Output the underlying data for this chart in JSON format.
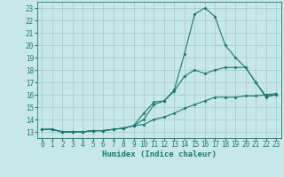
{
  "xlabel": "Humidex (Indice chaleur)",
  "x_values": [
    0,
    1,
    2,
    3,
    4,
    5,
    6,
    7,
    8,
    9,
    10,
    11,
    12,
    13,
    14,
    15,
    16,
    17,
    18,
    19,
    20,
    21,
    22,
    23
  ],
  "line1": [
    13.2,
    13.2,
    13.0,
    13.0,
    13.0,
    13.1,
    13.1,
    13.2,
    13.3,
    13.5,
    14.5,
    15.4,
    15.5,
    16.4,
    19.3,
    22.5,
    23.0,
    22.3,
    20.0,
    19.0,
    18.2,
    17.0,
    15.8,
    16.0
  ],
  "line2": [
    13.2,
    13.2,
    13.0,
    13.0,
    13.0,
    13.1,
    13.1,
    13.2,
    13.3,
    13.5,
    14.0,
    15.2,
    15.5,
    16.3,
    17.5,
    18.0,
    17.7,
    18.0,
    18.2,
    18.2,
    18.2,
    17.0,
    15.9,
    16.0
  ],
  "line3": [
    13.2,
    13.2,
    13.0,
    13.0,
    13.0,
    13.1,
    13.1,
    13.2,
    13.3,
    13.5,
    13.6,
    14.0,
    14.2,
    14.5,
    14.9,
    15.2,
    15.5,
    15.8,
    15.8,
    15.8,
    15.9,
    15.9,
    16.0,
    16.1
  ],
  "line_color": "#1a7a6e",
  "bg_color": "#c8e8e8",
  "grid_color": "#a0c8c8",
  "ylim": [
    12.5,
    23.5
  ],
  "xlim": [
    -0.5,
    23.5
  ],
  "yticks": [
    13,
    14,
    15,
    16,
    17,
    18,
    19,
    20,
    21,
    22,
    23
  ],
  "xticks": [
    0,
    1,
    2,
    3,
    4,
    5,
    6,
    7,
    8,
    9,
    10,
    11,
    12,
    13,
    14,
    15,
    16,
    17,
    18,
    19,
    20,
    21,
    22,
    23
  ],
  "tick_fontsize": 5.5,
  "xlabel_fontsize": 6.5
}
